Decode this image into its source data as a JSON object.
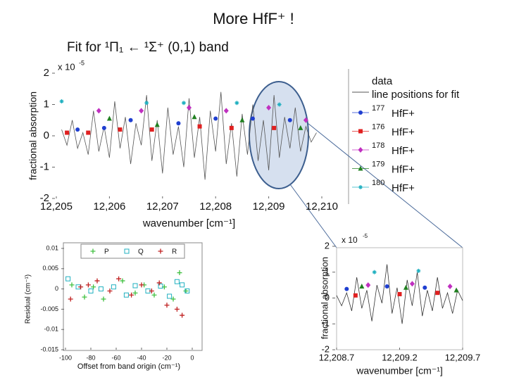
{
  "title": "More HfF⁺ !",
  "subtitle": "Fit for ¹Π₁ ← ¹Σ⁺ (0,1) band",
  "chart_data": [
    {
      "type": "line",
      "xlabel": "wavenumber [cm⁻¹]",
      "ylabel": "fractional absorption",
      "exponent": {
        "base": "x 10",
        "power": "-5"
      },
      "legend_note": "line positions for fit",
      "xlim": [
        12205,
        12210
      ],
      "ylim": [
        -2,
        2
      ],
      "xticks": [
        {
          "value": 12205,
          "label": "12,205"
        },
        {
          "value": 12206,
          "label": "12,206"
        },
        {
          "value": 12207,
          "label": "12,207"
        },
        {
          "value": 12208,
          "label": "12,208"
        },
        {
          "value": 12209,
          "label": "12,209"
        },
        {
          "value": 12210,
          "label": "12,210"
        }
      ],
      "yticks": [
        -2,
        -1,
        0,
        1,
        2
      ],
      "series": [
        {
          "name": "data",
          "color": "#555555",
          "marker": "line",
          "x": [
            12205.1,
            12205.2,
            12205.3,
            12205.4,
            12205.5,
            12205.6,
            12205.7,
            12205.8,
            12205.9,
            12206.0,
            12206.1,
            12206.2,
            12206.3,
            12206.4,
            12206.5,
            12206.6,
            12206.7,
            12206.8,
            12206.9,
            12207.0,
            12207.1,
            12207.2,
            12207.3,
            12207.4,
            12207.5,
            12207.6,
            12207.7,
            12207.8,
            12207.9,
            12208.0,
            12208.1,
            12208.2,
            12208.3,
            12208.4,
            12208.5,
            12208.6,
            12208.7,
            12208.8,
            12208.9,
            12209.0,
            12209.1,
            12209.2,
            12209.3,
            12209.4,
            12209.5,
            12209.6,
            12209.7,
            12209.8,
            12209.9
          ],
          "values": [
            0.2,
            -0.3,
            0.5,
            -0.4,
            0.1,
            -0.6,
            0.8,
            -0.5,
            0.3,
            -0.7,
            1.1,
            -0.4,
            0.6,
            -0.9,
            0.4,
            -0.3,
            1.3,
            -0.8,
            0.5,
            -1.2,
            0.9,
            -0.6,
            0.3,
            -1.0,
            1.2,
            -0.7,
            0.6,
            -1.4,
            0.8,
            -0.5,
            1.4,
            -0.9,
            0.4,
            -1.3,
            0.7,
            -0.6,
            1.0,
            -0.8,
            0.5,
            -1.1,
            1.3,
            -0.7,
            0.6,
            -0.4,
            0.9,
            -0.5,
            0.3,
            -0.2,
            0.1
          ]
        },
        {
          "name": "HfF+",
          "mass": "177",
          "color": "#1f3fd0",
          "marker": "circle",
          "x": [
            12205.4,
            12205.9,
            12206.4,
            12207.3,
            12208.0,
            12208.7,
            12209.4
          ],
          "values": [
            0.2,
            0.25,
            0.5,
            0.4,
            0.55,
            0.55,
            0.5
          ]
        },
        {
          "name": "HfF+",
          "mass": "176",
          "color": "#e02020",
          "marker": "square",
          "x": [
            12205.2,
            12205.6,
            12206.2,
            12206.8,
            12207.7,
            12208.3,
            12209.1
          ],
          "values": [
            0.1,
            0.1,
            0.2,
            0.2,
            0.3,
            0.25,
            0.25
          ]
        },
        {
          "name": "HfF+",
          "mass": "178",
          "color": "#c030c0",
          "marker": "diamond",
          "x": [
            12205.8,
            12206.6,
            12207.5,
            12208.2,
            12209.0,
            12209.7
          ],
          "values": [
            0.8,
            0.8,
            0.9,
            0.8,
            0.9,
            0.5
          ]
        },
        {
          "name": "HfF+",
          "mass": "179",
          "color": "#208020",
          "marker": "triangle",
          "x": [
            12206.0,
            12206.9,
            12207.6,
            12208.5,
            12209.6
          ],
          "values": [
            0.55,
            0.35,
            0.6,
            0.5,
            0.25
          ]
        },
        {
          "name": "HfF+",
          "mass": "180",
          "color": "#20b0c0",
          "marker": "star",
          "x": [
            12205.1,
            12206.7,
            12207.4,
            12208.4,
            12209.2
          ],
          "values": [
            1.1,
            1.05,
            1.05,
            1.05,
            1.0
          ]
        }
      ]
    },
    {
      "type": "scatter",
      "xlabel": "Offset from band origin (cm⁻¹)",
      "ylabel": "Residual (cm⁻¹)",
      "xlim": [
        -100,
        0
      ],
      "ylim": [
        -0.015,
        0.01
      ],
      "xticks": [
        -100,
        -80,
        -60,
        -40,
        -20,
        0
      ],
      "yticks": [
        0.01,
        0.005,
        0,
        -0.005,
        -0.01,
        -0.015
      ],
      "series": [
        {
          "name": "P",
          "color": "#40c040",
          "marker": "plus",
          "x": [
            -95,
            -85,
            -78,
            -70,
            -55,
            -45,
            -38,
            -30,
            -22,
            -15,
            -10,
            -5
          ],
          "values": [
            0.001,
            -0.002,
            0.0005,
            -0.0025,
            0.002,
            -0.001,
            0.001,
            -0.0015,
            0.0005,
            -0.0025,
            0.004,
            -0.0005
          ]
        },
        {
          "name": "Q",
          "color": "#20b0c0",
          "marker": "square-open",
          "x": [
            -98,
            -90,
            -80,
            -72,
            -62,
            -52,
            -45,
            -35,
            -25,
            -18,
            -12,
            -8,
            -4
          ],
          "values": [
            0.0025,
            0.0005,
            -0.0005,
            0,
            0.0005,
            -0.0015,
            0.0008,
            -0.0005,
            0.0007,
            -0.0018,
            0.0018,
            0.001,
            -0.0005
          ]
        },
        {
          "name": "R",
          "color": "#c02020",
          "marker": "plus",
          "x": [
            -96,
            -88,
            -82,
            -75,
            -65,
            -58,
            -48,
            -40,
            -32,
            -26,
            -20,
            -12,
            -8
          ],
          "values": [
            -0.0025,
            0.0005,
            0.001,
            0.002,
            -0.0005,
            0.0025,
            -0.0015,
            0.001,
            -0.0005,
            0.0015,
            -0.004,
            -0.005,
            -0.0065
          ]
        }
      ]
    },
    {
      "type": "line",
      "xlabel": "wavenumber [cm⁻¹]",
      "ylabel": "fractional absorption",
      "exponent": {
        "base": "x 10",
        "power": "-5"
      },
      "xlim": [
        12208.7,
        12209.7
      ],
      "ylim": [
        -2,
        2
      ],
      "xticks": [
        {
          "value": 12208.7,
          "label": "12,208.7"
        },
        {
          "value": 12209.2,
          "label": "12,209.2"
        },
        {
          "value": 12209.7,
          "label": "12,209.7"
        }
      ],
      "yticks": [
        -2,
        -1,
        0,
        1,
        2
      ],
      "series": [
        {
          "color": "#333333",
          "marker": "line",
          "x": [
            12208.7,
            12208.74,
            12208.78,
            12208.82,
            12208.86,
            12208.9,
            12208.94,
            12208.98,
            12209.02,
            12209.06,
            12209.1,
            12209.14,
            12209.18,
            12209.22,
            12209.26,
            12209.3,
            12209.34,
            12209.38,
            12209.42,
            12209.46,
            12209.5,
            12209.54,
            12209.58,
            12209.62,
            12209.66,
            12209.7
          ],
          "values": [
            0.1,
            -0.3,
            0.2,
            -0.5,
            0.8,
            -0.4,
            0.3,
            -0.9,
            0.5,
            -0.2,
            1.3,
            -0.6,
            0.4,
            -1.0,
            0.7,
            -0.3,
            1.0,
            -0.7,
            0.3,
            -0.5,
            0.8,
            -0.4,
            0.2,
            -0.6,
            0.3,
            -0.1
          ]
        },
        {
          "color": "#1f3fd0",
          "marker": "circle",
          "x": [
            12208.78,
            12209.1,
            12209.4
          ],
          "values": [
            0.35,
            0.45,
            0.4
          ]
        },
        {
          "color": "#e02020",
          "marker": "square",
          "x": [
            12208.85,
            12209.2,
            12209.5
          ],
          "values": [
            0.1,
            0.15,
            0.2
          ]
        },
        {
          "color": "#c030c0",
          "marker": "diamond",
          "x": [
            12208.95,
            12209.3,
            12209.6
          ],
          "values": [
            0.5,
            0.55,
            0.45
          ]
        },
        {
          "color": "#208020",
          "marker": "triangle",
          "x": [
            12208.9,
            12209.25,
            12209.65
          ],
          "values": [
            0.45,
            0.4,
            0.3
          ]
        },
        {
          "color": "#20b0c0",
          "marker": "star",
          "x": [
            12209.0,
            12209.35
          ],
          "values": [
            1.0,
            1.05
          ]
        }
      ]
    }
  ]
}
